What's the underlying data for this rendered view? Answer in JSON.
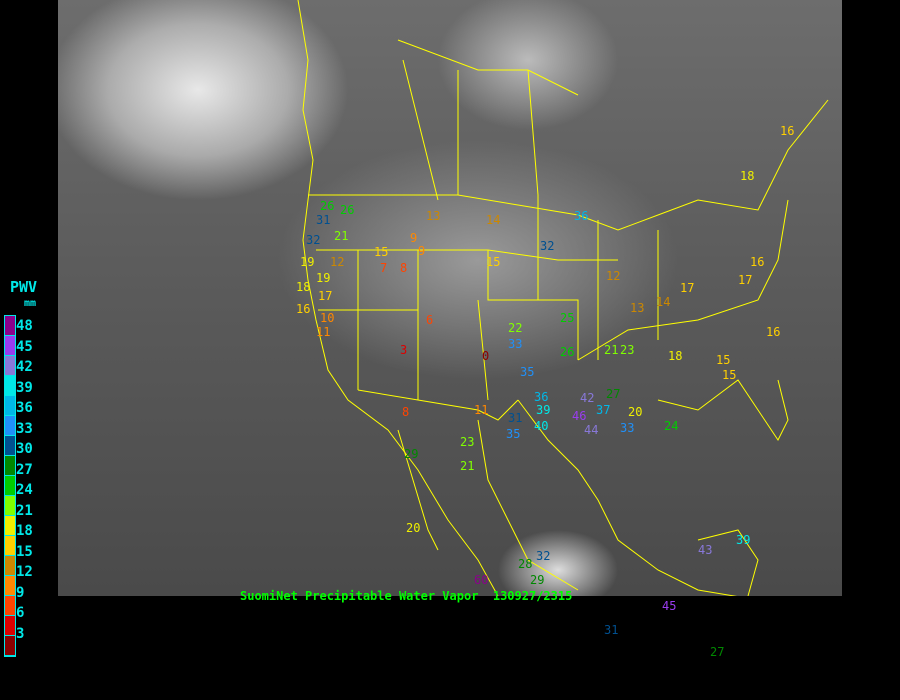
{
  "legend": {
    "title": "PWV",
    "unit": "mm",
    "labels": [
      "48",
      "45",
      "42",
      "39",
      "36",
      "33",
      "30",
      "27",
      "24",
      "21",
      "18",
      "15",
      "12",
      "9",
      "6",
      "3"
    ],
    "colors": [
      "#8b008b",
      "#9a3cf0",
      "#8878d8",
      "#00e8e8",
      "#00b8e8",
      "#2090f8",
      "#005090",
      "#008800",
      "#00cc00",
      "#80ff00",
      "#f0f000",
      "#ffd000",
      "#cc8800",
      "#ff8800",
      "#ff4400",
      "#dd0000",
      "#8b0000"
    ]
  },
  "caption": "SuomiNet Precipitable Water Vapor  130927/2315",
  "colors": {
    "borders": "#ffff00",
    "background": "#000000",
    "caption": "#00ff00"
  },
  "stations": [
    "16",
    "26",
    "31",
    "32",
    "21",
    "19",
    "18",
    "12",
    "16",
    "15",
    "9",
    "8",
    "7",
    "6",
    "3",
    "10",
    "11",
    "13",
    "14",
    "15",
    "0",
    "17",
    "19",
    "29",
    "22",
    "33",
    "35",
    "39",
    "36",
    "32",
    "31",
    "35",
    "40",
    "44",
    "46",
    "42",
    "37",
    "33",
    "25",
    "27",
    "20",
    "21",
    "23",
    "18",
    "15",
    "16",
    "14",
    "13",
    "17",
    "26",
    "28",
    "29",
    "32",
    "45",
    "43",
    "39",
    "60",
    "31",
    "27",
    "21",
    "20",
    "23",
    "24",
    "26",
    "36",
    "18",
    "16",
    "17",
    "15",
    "11",
    "9",
    "8",
    "12"
  ]
}
